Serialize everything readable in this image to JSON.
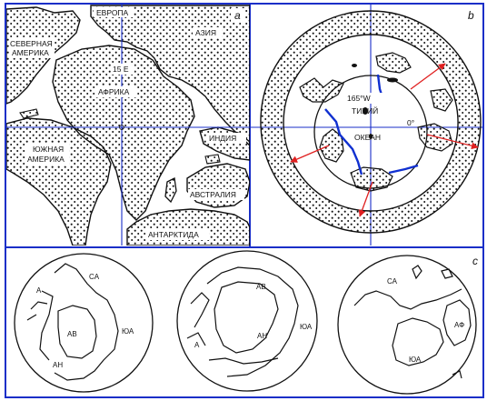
{
  "panels": {
    "a": {
      "letter": "a",
      "labels": {
        "europe": "ЕВРОПА",
        "north_america": "СЕВЕРНАЯ АМЕРИКА",
        "north_america_l1": "СЕВЕРНАЯ",
        "north_america_l2": "АМЕРИКА",
        "asia": "АЗИЯ",
        "meridian": "15 Е",
        "africa": "АФРИКА",
        "south_america_l1": "ЮЖНАЯ",
        "south_america_l2": "АМЕРИКА",
        "india": "ИНДИЯ",
        "australia": "АВСТРАЛИЯ",
        "antarctica": "АНТАРКТИДА"
      }
    },
    "b": {
      "letter": "b",
      "labels": {
        "meridian": "165°W",
        "ocean_l1": "ТИХИЙ",
        "ocean_l2": "ОКЕАН",
        "equator": "0°"
      },
      "colors": {
        "arrows": "#e02020",
        "ridges": "#1030d0",
        "frame": "#1a2fc8"
      }
    },
    "c": {
      "letter": "c",
      "globes": [
        {
          "labels": {
            "ca": "CA",
            "a": "А",
            "ab": "АВ",
            "yua": "ЮА",
            "an": "АН"
          }
        },
        {
          "labels": {
            "ab": "АВ",
            "an": "АН",
            "yua": "ЮА",
            "a": "А"
          }
        },
        {
          "labels": {
            "ca": "СА",
            "af": "АФ",
            "yua": "ЮА"
          }
        }
      ]
    }
  }
}
